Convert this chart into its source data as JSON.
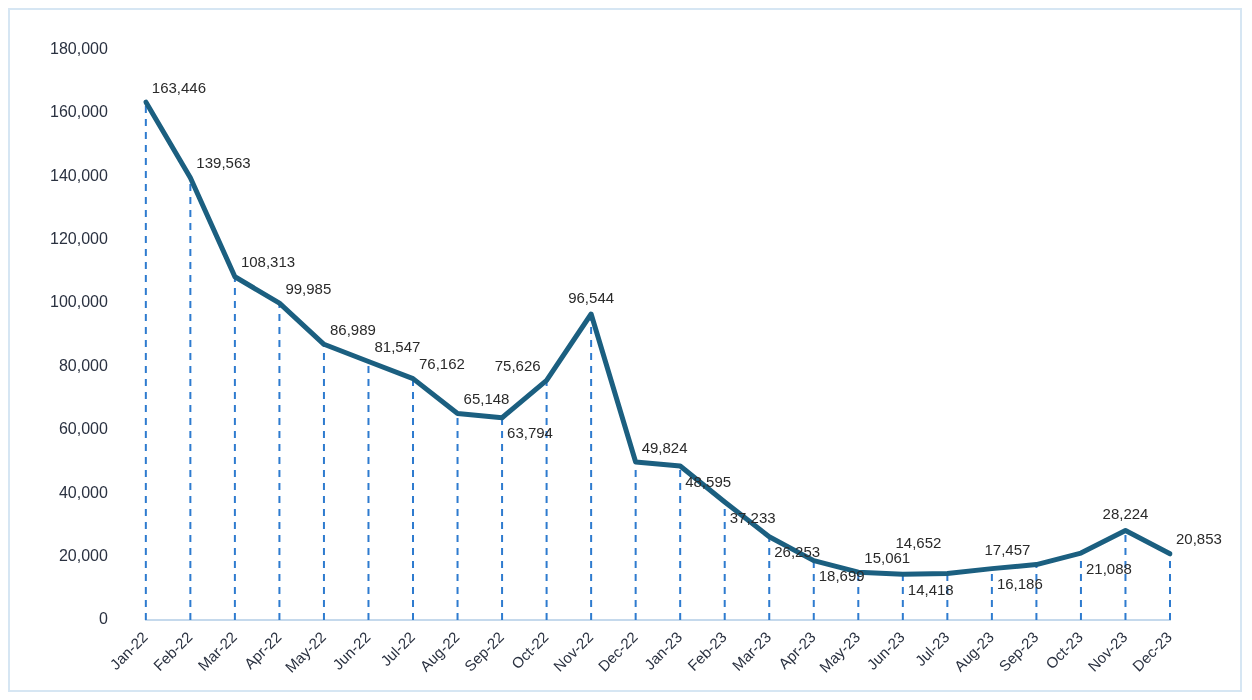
{
  "chart_data": {
    "type": "line",
    "categories": [
      "Jan-22",
      "Feb-22",
      "Mar-22",
      "Apr-22",
      "May-22",
      "Jun-22",
      "Jul-22",
      "Aug-22",
      "Sep-22",
      "Oct-22",
      "Nov-22",
      "Dec-22",
      "Jan-23",
      "Feb-23",
      "Mar-23",
      "Apr-23",
      "May-23",
      "Jun-23",
      "Jul-23",
      "Aug-23",
      "Sep-23",
      "Oct-23",
      "Nov-23",
      "Dec-23"
    ],
    "series": [
      {
        "color": "#1b5f80",
        "values": [
          163446,
          139563,
          108313,
          99985,
          86989,
          81547,
          76162,
          65148,
          63794,
          75626,
          96544,
          49824,
          48595,
          37233,
          26253,
          18699,
          15061,
          14418,
          14652,
          16186,
          17457,
          21088,
          28224,
          20853
        ],
        "value_labels": [
          "163,446",
          "139,563",
          "108,313",
          "99,985",
          "86,989",
          "81,547",
          "76,162",
          "65,148",
          "63,794",
          "75,626",
          "96,544",
          "49,824",
          "48,595",
          "37,233",
          "26,253",
          "18,699",
          "15,061",
          "14,418",
          "14,652",
          "16,186",
          "17,457",
          "21,088",
          "28,224",
          "20,853"
        ]
      }
    ],
    "ylim": [
      0,
      180000
    ],
    "yticks": [
      {
        "value": 0,
        "label": "0"
      },
      {
        "value": 20000,
        "label": "20,000"
      },
      {
        "value": 40000,
        "label": "40,000"
      },
      {
        "value": 60000,
        "label": "60,000"
      },
      {
        "value": 80000,
        "label": "80,000"
      },
      {
        "value": 100000,
        "label": "100,000"
      },
      {
        "value": 120000,
        "label": "120,000"
      },
      {
        "value": 140000,
        "label": "140,000"
      },
      {
        "value": 160000,
        "label": "160,000"
      },
      {
        "value": 180000,
        "label": "180,000"
      }
    ],
    "grid": false,
    "legend": false,
    "marker": "none",
    "line_style": "solid",
    "data_labels": true
  }
}
